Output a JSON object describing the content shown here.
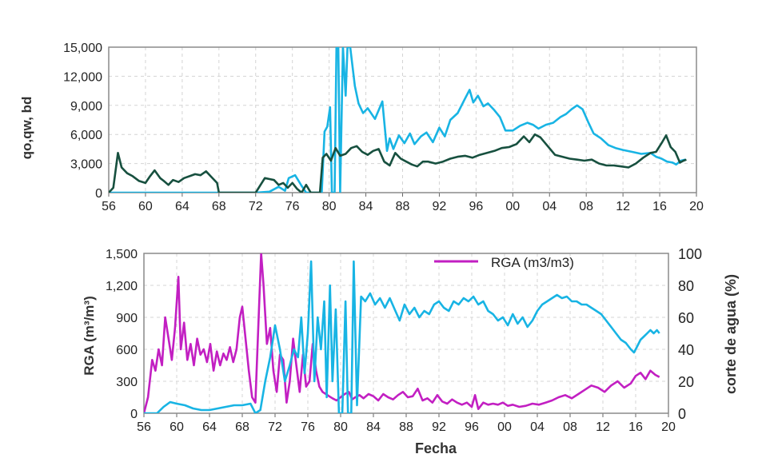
{
  "chart_data": [
    {
      "type": "line",
      "ylabel": "qo,qw, bd",
      "xlabel": "",
      "xlim": [
        1956,
        2020
      ],
      "ylim": [
        0,
        15000
      ],
      "x_ticks": [
        "56",
        "60",
        "64",
        "68",
        "72",
        "76",
        "80",
        "84",
        "88",
        "92",
        "96",
        "00",
        "04",
        "08",
        "12",
        "16",
        "20"
      ],
      "y_ticks": [
        "0",
        "3,000",
        "6,000",
        "9,000",
        "12,000",
        "15,000"
      ],
      "grid": "dashed",
      "series": [
        {
          "color": "#18b4e4",
          "x": [
            1956,
            1960,
            1964,
            1968,
            1972,
            1973.5,
            1974.5,
            1975.2,
            1975.6,
            1976.3,
            1977,
            1977.5,
            1978,
            1978.7,
            1979.2,
            1979.5,
            1979.8,
            1980.1,
            1980.3,
            1980.6,
            1980.8,
            1981.0,
            1981.2,
            1981.5,
            1981.8,
            1982.0,
            1982.3,
            1982.8,
            1983.2,
            1983.7,
            1984.2,
            1985.0,
            1985.8,
            1986.3,
            1986.6,
            1987.0,
            1987.6,
            1988.2,
            1988.8,
            1989.3,
            1990.0,
            1990.6,
            1991.3,
            1992.0,
            1992.6,
            1993.2,
            1994.0,
            1994.8,
            1995.3,
            1995.7,
            1996.2,
            1996.8,
            1997.3,
            1998.0,
            1998.6,
            1999.2,
            2000.0,
            2000.8,
            2001.6,
            2002.2,
            2002.8,
            2003.6,
            2004.4,
            2005.2,
            2005.8,
            2006.4,
            2007.0,
            2007.6,
            2008.2,
            2008.8,
            2009.6,
            2010.4,
            2011.2,
            2012.0,
            2013.0,
            2014.0,
            2015.0,
            2015.6,
            2016.2,
            2016.8,
            2017.4,
            2017.8,
            2018.3,
            2018.8
          ],
          "values": [
            0,
            0,
            0,
            0,
            0,
            100,
            600,
            200,
            1500,
            1800,
            700,
            0,
            0,
            0,
            0,
            6300,
            6800,
            8800,
            0,
            0,
            15000,
            15000,
            0,
            15000,
            10000,
            15000,
            15000,
            11000,
            9200,
            8200,
            8700,
            7600,
            9400,
            4300,
            5600,
            4500,
            5900,
            5100,
            6100,
            5000,
            5800,
            6200,
            5200,
            6700,
            5800,
            7500,
            8200,
            9700,
            10600,
            9300,
            10000,
            8900,
            9200,
            8500,
            7800,
            6400,
            6400,
            6900,
            7200,
            7000,
            6600,
            7000,
            7200,
            7800,
            8100,
            8600,
            9000,
            8600,
            7300,
            6100,
            5600,
            4900,
            4600,
            4400,
            4200,
            4000,
            4100,
            3700,
            3500,
            3200,
            3100,
            2900,
            3300,
            3400
          ]
        },
        {
          "color": "#17503f",
          "x": [
            1956,
            1956.5,
            1957,
            1957.4,
            1958,
            1958.6,
            1959.3,
            1960,
            1960.5,
            1961,
            1961.6,
            1962,
            1962.5,
            1963,
            1963.6,
            1964.2,
            1964.8,
            1965.4,
            1966,
            1966.6,
            1967.2,
            1967.8,
            1968,
            1969,
            1970,
            1971,
            1972,
            1973,
            1973.5,
            1974,
            1974.5,
            1975,
            1975.5,
            1976,
            1976.5,
            1977,
            1977.5,
            1978,
            1978.5,
            1979,
            1979.3,
            1979.7,
            1980.2,
            1980.7,
            1981.2,
            1981.8,
            1982.4,
            1983.0,
            1983.6,
            1984.2,
            1984.8,
            1985.4,
            1986.0,
            1986.6,
            1987.2,
            1987.8,
            1988.4,
            1989.0,
            1989.6,
            1990.2,
            1990.8,
            1991.6,
            1992.4,
            1993.2,
            1994.0,
            1994.8,
            1995.6,
            1996.4,
            1997.2,
            1998.0,
            1998.8,
            1999.6,
            2000.4,
            2001.2,
            2001.8,
            2002.4,
            2003.0,
            2003.8,
            2004.6,
            2005.4,
            2006.2,
            2007.0,
            2007.8,
            2008.6,
            2009.4,
            2010.2,
            2011.0,
            2011.8,
            2012.6,
            2013.4,
            2014.2,
            2015.0,
            2015.6,
            2016.2,
            2016.7,
            2017.2,
            2017.7,
            2018.2,
            2018.6,
            2018.9
          ],
          "values": [
            0,
            500,
            4100,
            2600,
            2000,
            1700,
            1200,
            1000,
            1700,
            2300,
            1500,
            1200,
            800,
            1300,
            1100,
            1500,
            1700,
            1900,
            1800,
            2200,
            1600,
            1000,
            0,
            0,
            0,
            0,
            0,
            1500,
            1400,
            1300,
            800,
            1000,
            500,
            1000,
            400,
            0,
            800,
            0,
            0,
            0,
            3600,
            4000,
            3300,
            4600,
            3800,
            4000,
            4600,
            4800,
            4200,
            3900,
            4300,
            4500,
            3200,
            2800,
            4100,
            3500,
            3200,
            2900,
            2700,
            3200,
            3200,
            3000,
            3200,
            3500,
            3700,
            3800,
            3600,
            3900,
            4100,
            4300,
            4600,
            4700,
            5000,
            5800,
            5200,
            6000,
            5700,
            4800,
            3900,
            3700,
            3500,
            3400,
            3300,
            3400,
            3000,
            2800,
            2800,
            2700,
            2600,
            3000,
            3600,
            4100,
            4200,
            5100,
            5900,
            4700,
            4200,
            3100,
            3300,
            3400
          ]
        }
      ]
    },
    {
      "type": "line",
      "xlabel": "Fecha",
      "ylabel": "RGA (m³/m³)",
      "y2label": "corte de agua (%)",
      "xlim": [
        1956,
        2020
      ],
      "ylim": [
        0,
        1500
      ],
      "y2lim": [
        0,
        100
      ],
      "x_ticks": [
        "56",
        "60",
        "64",
        "68",
        "72",
        "76",
        "80",
        "84",
        "88",
        "92",
        "96",
        "00",
        "04",
        "08",
        "12",
        "16",
        "20"
      ],
      "y_ticks": [
        "0",
        "300",
        "600",
        "900",
        "1,200",
        "1,500"
      ],
      "y2_ticks": [
        "0",
        "20",
        "40",
        "60",
        "80",
        "100"
      ],
      "legend": "top-center",
      "legend_entry": "RGA (m3/m3)",
      "grid": "dashed",
      "series": [
        {
          "name": "RGA (m3/m3)",
          "axis": "left",
          "color": "#c21fc2",
          "x": [
            1956,
            1956.5,
            1957,
            1957.4,
            1957.8,
            1958.2,
            1958.6,
            1959,
            1959.4,
            1959.8,
            1960.2,
            1960.5,
            1960.9,
            1961.3,
            1961.7,
            1962.1,
            1962.5,
            1962.9,
            1963.3,
            1963.7,
            1964.1,
            1964.5,
            1964.9,
            1965.3,
            1965.7,
            1966.1,
            1966.5,
            1966.9,
            1967.3,
            1967.7,
            1968.0,
            1968.4,
            1968.8,
            1969.2,
            1969.6,
            1970.0,
            1970.3,
            1970.6,
            1971.0,
            1971.4,
            1971.8,
            1972.2,
            1972.6,
            1973.0,
            1973.4,
            1973.8,
            1974.2,
            1974.6,
            1975.0,
            1975.4,
            1975.8,
            1976.2,
            1976.6,
            1977.0,
            1977.4,
            1977.8,
            1978.2,
            1978.6,
            1979.0,
            1979.5,
            1980.0,
            1980.5,
            1981.0,
            1981.4,
            1981.8,
            1982.3,
            1982.8,
            1983.4,
            1984.0,
            1984.6,
            1985.2,
            1985.8,
            1986.4,
            1987.0,
            1987.6,
            1988.2,
            1988.8,
            1989.4,
            1990.0,
            1990.6,
            1991.2,
            1991.8,
            1992.4,
            1993.0,
            1993.6,
            1994.2,
            1994.8,
            1995.4,
            1996.0,
            1996.4,
            1996.8,
            1997.4,
            1998.0,
            1998.6,
            1999.2,
            1999.8,
            2000.4,
            2001.0,
            2001.8,
            2002.6,
            2003.4,
            2004.2,
            2005.0,
            2005.8,
            2006.6,
            2007.4,
            2008.2,
            2009.0,
            2009.8,
            2010.6,
            2011.4,
            2012.2,
            2013.0,
            2013.8,
            2014.6,
            2015.4,
            2016.0,
            2016.6,
            2017.2,
            2017.8,
            2018.4,
            2018.9
          ],
          "values": [
            0,
            150,
            500,
            400,
            600,
            450,
            900,
            700,
            500,
            800,
            1280,
            600,
            850,
            500,
            650,
            450,
            700,
            550,
            600,
            480,
            650,
            400,
            580,
            450,
            560,
            500,
            620,
            480,
            600,
            900,
            1000,
            700,
            400,
            150,
            100,
            900,
            1500,
            1200,
            650,
            800,
            400,
            200,
            550,
            500,
            100,
            300,
            700,
            450,
            200,
            550,
            250,
            300,
            650,
            400,
            250,
            200,
            180,
            160,
            140,
            120,
            150,
            180,
            200,
            130,
            150,
            170,
            140,
            180,
            160,
            120,
            180,
            150,
            130,
            170,
            200,
            150,
            160,
            230,
            120,
            140,
            100,
            170,
            110,
            90,
            130,
            100,
            80,
            100,
            60,
            170,
            40,
            100,
            80,
            90,
            80,
            100,
            70,
            80,
            60,
            70,
            90,
            80,
            100,
            120,
            150,
            170,
            140,
            180,
            220,
            260,
            240,
            200,
            260,
            300,
            240,
            280,
            350,
            380,
            320,
            400,
            360,
            340
          ]
        },
        {
          "name": "",
          "axis": "right",
          "color": "#18b4e4",
          "x": [
            1956,
            1956.8,
            1957.6,
            1958.4,
            1959.2,
            1960,
            1961,
            1962,
            1963,
            1964,
            1965,
            1966,
            1967,
            1968,
            1969,
            1969.6,
            1970.2,
            1970.8,
            1971.4,
            1972.0,
            1972.6,
            1973.2,
            1973.8,
            1974.3,
            1974.8,
            1975.2,
            1975.6,
            1976.0,
            1976.4,
            1976.8,
            1977.2,
            1977.6,
            1978.0,
            1978.3,
            1978.7,
            1979.0,
            1979.4,
            1979.8,
            1980.2,
            1980.6,
            1980.9,
            1981.3,
            1981.6,
            1982.0,
            1982.5,
            1983.0,
            1983.6,
            1984.2,
            1984.8,
            1985.4,
            1986.0,
            1986.6,
            1987.2,
            1987.8,
            1988.4,
            1989.0,
            1989.6,
            1990.2,
            1990.8,
            1991.4,
            1992.0,
            1992.6,
            1993.2,
            1993.8,
            1994.4,
            1995.0,
            1995.6,
            1996.2,
            1996.8,
            1997.4,
            1998.0,
            1998.6,
            1999.2,
            1999.8,
            2000.4,
            2001.0,
            2001.6,
            2002.2,
            2002.8,
            2003.4,
            2004.0,
            2004.6,
            2005.2,
            2005.8,
            2006.4,
            2007.0,
            2007.6,
            2008.2,
            2008.8,
            2009.4,
            2010.0,
            2010.6,
            2011.2,
            2011.8,
            2012.4,
            2013.0,
            2013.6,
            2014.2,
            2014.8,
            2015.4,
            2015.8,
            2016.2,
            2016.6,
            2017.0,
            2017.4,
            2017.8,
            2018.2,
            2018.6,
            2018.9
          ],
          "values": [
            0,
            0,
            0,
            4,
            7,
            6,
            5,
            3,
            2,
            2,
            3,
            4,
            5,
            5,
            6,
            0,
            2,
            20,
            35,
            55,
            40,
            20,
            30,
            40,
            35,
            60,
            25,
            50,
            95,
            20,
            60,
            40,
            70,
            10,
            80,
            20,
            65,
            0,
            0,
            70,
            0,
            0,
            95,
            5,
            73,
            70,
            75,
            68,
            72,
            66,
            72,
            65,
            58,
            68,
            62,
            66,
            60,
            64,
            62,
            68,
            70,
            66,
            64,
            70,
            68,
            72,
            70,
            73,
            68,
            70,
            64,
            62,
            58,
            60,
            55,
            62,
            56,
            60,
            54,
            58,
            64,
            68,
            70,
            72,
            74,
            72,
            73,
            70,
            70,
            68,
            68,
            66,
            64,
            62,
            58,
            54,
            50,
            46,
            44,
            40,
            38,
            42,
            46,
            48,
            50,
            52,
            50,
            52,
            50
          ]
        }
      ]
    }
  ]
}
